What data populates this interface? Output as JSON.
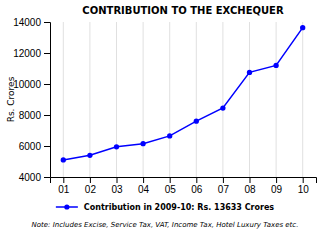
{
  "chart_data": {
    "type": "line",
    "title": "CONTRIBUTION TO THE EXCHEQUER",
    "ylabel": "Rs. Crores",
    "x": [
      1,
      2,
      3,
      4,
      5,
      6,
      7,
      8,
      9,
      10
    ],
    "xlim": [
      0.5,
      10.5
    ],
    "xticks": [
      {
        "value": 1,
        "label": "01"
      },
      {
        "value": 2,
        "label": "02"
      },
      {
        "value": 3,
        "label": "03"
      },
      {
        "value": 4,
        "label": "04"
      },
      {
        "value": 5,
        "label": "05"
      },
      {
        "value": 6,
        "label": "06"
      },
      {
        "value": 7,
        "label": "07"
      },
      {
        "value": 8,
        "label": "08"
      },
      {
        "value": 9,
        "label": "09"
      },
      {
        "value": 10,
        "label": "10"
      }
    ],
    "ylim": [
      4000,
      14000
    ],
    "yticks": [
      4000,
      6000,
      8000,
      10000,
      12000,
      14000
    ],
    "series": [
      {
        "name": "Contribution in 2009-10: Rs. 13633 Crores",
        "color": "#0000FF",
        "marker": "circle",
        "line_style": "solid",
        "values": [
          5100,
          5400,
          5950,
          6150,
          6650,
          7600,
          8450,
          10750,
          11200,
          13633
        ]
      }
    ],
    "grid": "x",
    "legend": "bottom",
    "annotations": [
      "Note: Includes Excise, Service Tax, VAT, Income Tax, Hotel Luxury Taxes etc."
    ]
  }
}
